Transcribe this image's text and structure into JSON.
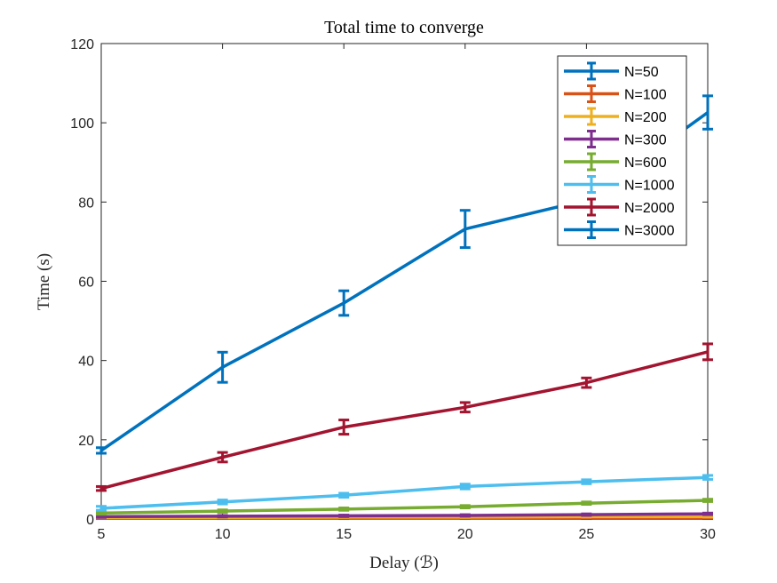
{
  "chart_data": {
    "type": "line",
    "title": "Total time to converge",
    "xlabel": "Delay (ℬ)",
    "ylabel": "Time (s)",
    "xlim": [
      5,
      30
    ],
    "ylim": [
      0,
      120
    ],
    "xticks": [
      5,
      10,
      15,
      20,
      25,
      30
    ],
    "yticks": [
      0,
      20,
      40,
      60,
      80,
      100,
      120
    ],
    "grid": false,
    "legend_position": "top-right",
    "x": [
      5,
      10,
      15,
      20,
      25,
      30
    ],
    "series": [
      {
        "name": "N=50",
        "color": "#0072BD",
        "values": [
          0.2,
          0.2,
          0.2,
          0.2,
          0.2,
          0.2
        ],
        "errors": [
          0.1,
          0.1,
          0.1,
          0.1,
          0.1,
          0.1
        ]
      },
      {
        "name": "N=100",
        "color": "#D95319",
        "values": [
          0.3,
          0.3,
          0.3,
          0.3,
          0.4,
          0.4
        ],
        "errors": [
          0.1,
          0.1,
          0.1,
          0.1,
          0.1,
          0.1
        ]
      },
      {
        "name": "N=200",
        "color": "#EDB120",
        "values": [
          0.4,
          0.4,
          0.5,
          0.5,
          0.6,
          0.6
        ],
        "errors": [
          0.1,
          0.1,
          0.1,
          0.1,
          0.1,
          0.1
        ]
      },
      {
        "name": "N=300",
        "color": "#7E2F8E",
        "values": [
          0.6,
          0.7,
          0.8,
          0.9,
          1.1,
          1.3
        ],
        "errors": [
          0.2,
          0.2,
          0.2,
          0.2,
          0.2,
          0.2
        ]
      },
      {
        "name": "N=600",
        "color": "#77AC30",
        "values": [
          1.5,
          2.0,
          2.5,
          3.1,
          4.0,
          4.7
        ],
        "errors": [
          0.3,
          0.3,
          0.3,
          0.3,
          0.3,
          0.3
        ]
      },
      {
        "name": "N=1000",
        "color": "#4DBEEE",
        "values": [
          2.7,
          4.3,
          6.0,
          8.2,
          9.4,
          10.5
        ],
        "errors": [
          0.5,
          0.5,
          0.5,
          0.6,
          0.5,
          0.5
        ]
      },
      {
        "name": "N=2000",
        "color": "#A2142F",
        "values": [
          7.7,
          15.6,
          23.2,
          28.2,
          34.4,
          42.2
        ],
        "errors": [
          0.5,
          1.2,
          1.8,
          1.2,
          1.2,
          2.0
        ]
      },
      {
        "name": "N=3000",
        "color": "#0072BD",
        "values": [
          17.3,
          38.3,
          54.5,
          73.2,
          80.5,
          102.6
        ],
        "errors": [
          0.7,
          3.8,
          3.1,
          4.7,
          3.0,
          4.2
        ]
      }
    ]
  }
}
